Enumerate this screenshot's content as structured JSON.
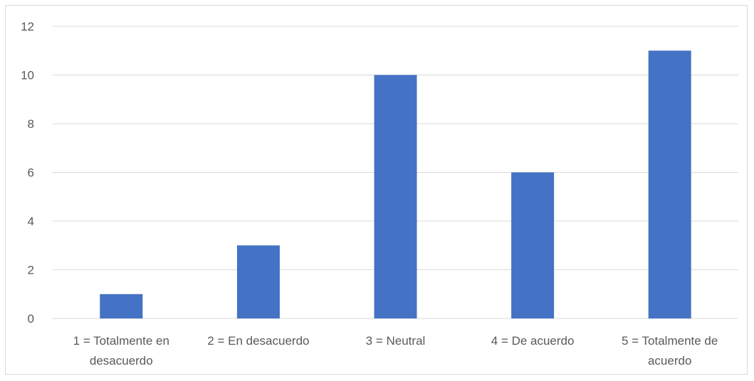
{
  "chart_data": {
    "type": "bar",
    "title": "",
    "xlabel": "",
    "ylabel": "",
    "categories": [
      [
        "1 = Totalmente en",
        "desacuerdo"
      ],
      [
        "2 = En desacuerdo"
      ],
      [
        "3 = Neutral"
      ],
      [
        "4 = De acuerdo"
      ],
      [
        "5 = Totalmente de",
        "acuerdo"
      ]
    ],
    "values": [
      1,
      3,
      10,
      6,
      11
    ],
    "ylim": [
      0,
      12
    ],
    "yticks": [
      0,
      2,
      4,
      6,
      8,
      10,
      12
    ],
    "grid": true,
    "legend": "none",
    "colors": {
      "bar": "#4472C4",
      "grid": "#d9d9d9",
      "axis": "#d9d9d9",
      "text": "#595959",
      "border": "#d9d9d9"
    }
  }
}
